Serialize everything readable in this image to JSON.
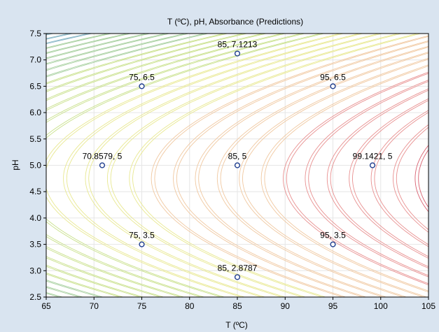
{
  "chart_data": {
    "type": "contour",
    "title": "T (ºC), pH, Absorbance (Predictions)",
    "xlabel": "T (ºC)",
    "ylabel": "pH",
    "xlim": [
      65,
      105
    ],
    "ylim": [
      2.5,
      7.5
    ],
    "xticks": [
      65,
      70,
      75,
      80,
      85,
      90,
      95,
      100,
      105
    ],
    "yticks": [
      2.5,
      3.0,
      3.5,
      4.0,
      4.5,
      5.0,
      5.5,
      6.0,
      6.5,
      7.0,
      7.5
    ],
    "xtick_labels": [
      "65",
      "70",
      "75",
      "80",
      "85",
      "90",
      "95",
      "100",
      "105"
    ],
    "ytick_labels": [
      "2.5",
      "3.0",
      "3.5",
      "4.0",
      "4.5",
      "5.0",
      "5.5",
      "6.0",
      "6.5",
      "7.0",
      "7.5"
    ],
    "grid": true,
    "points": [
      {
        "x": 85,
        "y": 7.1213,
        "label": "85, 7.1213"
      },
      {
        "x": 75,
        "y": 6.5,
        "label": "75, 6.5"
      },
      {
        "x": 95,
        "y": 6.5,
        "label": "95, 6.5"
      },
      {
        "x": 70.8579,
        "y": 5,
        "label": "70.8579, 5"
      },
      {
        "x": 85,
        "y": 5,
        "label": "85, 5"
      },
      {
        "x": 99.1421,
        "y": 5,
        "label": "99.1421, 5"
      },
      {
        "x": 75,
        "y": 3.5,
        "label": "75, 3.5"
      },
      {
        "x": 95,
        "y": 3.5,
        "label": "95, 3.5"
      },
      {
        "x": 85,
        "y": 2.8787,
        "label": "85, 2.8787"
      }
    ],
    "contour_colors": [
      "#8ab8c8",
      "#a8d0a0",
      "#c8e08a",
      "#e8e890",
      "#f0c8a0",
      "#e89090",
      "#d86070"
    ]
  }
}
